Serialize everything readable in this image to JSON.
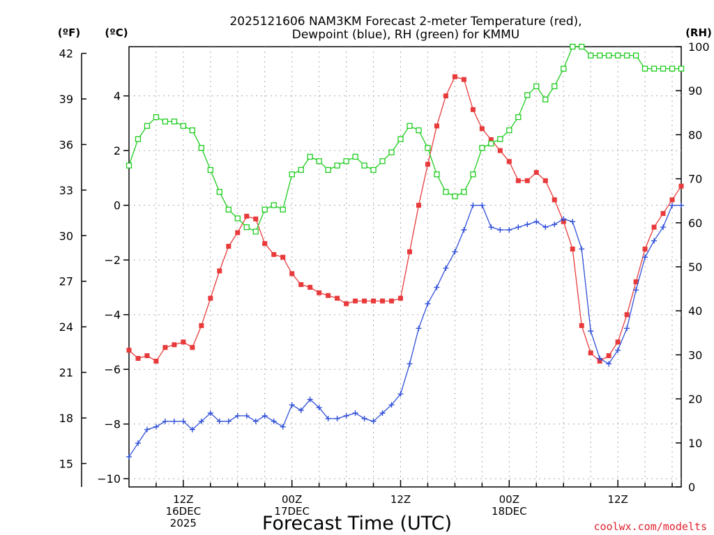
{
  "chart_data": {
    "type": "line",
    "title_line1": "2025121606 NAM3KM Forecast 2-meter Temperature (red),",
    "title_line2": "Dewpoint (blue), RH (green) for KMMU",
    "left_f_unit": "(ºF)",
    "left_c_unit": "(ºC)",
    "right_unit": "(RH)",
    "xlabel": "Forecast Time (UTC)",
    "credit": "coolwx.com/modelts",
    "x_range": [
      0,
      61
    ],
    "celsius_range": [
      -10.3,
      5.8
    ],
    "rh_range": [
      0,
      100
    ],
    "fahrenheit_ticks": [
      "42",
      "39",
      "36",
      "33",
      "30",
      "27",
      "24",
      "21",
      "18",
      "15"
    ],
    "celsius_ticks": [
      "4",
      "2",
      "0",
      "−2",
      "−4",
      "−6",
      "−8",
      "−10"
    ],
    "rh_ticks": [
      "100",
      "90",
      "80",
      "70",
      "60",
      "50",
      "40",
      "30",
      "20",
      "10",
      "0"
    ],
    "x_ticks": [
      {
        "x": 6,
        "lines": [
          "12Z",
          "16DEC",
          "2025"
        ]
      },
      {
        "x": 18,
        "lines": [
          "00Z",
          "17DEC"
        ]
      },
      {
        "x": 30,
        "lines": [
          "12Z"
        ]
      },
      {
        "x": 42,
        "lines": [
          "00Z",
          "18DEC"
        ]
      },
      {
        "x": 54,
        "lines": [
          "12Z"
        ]
      }
    ],
    "grid": true,
    "colors": {
      "temperature": "#e83a3a",
      "dewpoint": "#2f4fd8",
      "rh": "#1ccc1c"
    },
    "series": [
      {
        "key": "temperature",
        "values": [
          -5.3,
          -5.6,
          -5.5,
          -5.7,
          -5.2,
          -5.1,
          -5.0,
          -5.2,
          -4.4,
          -3.4,
          -2.4,
          -1.5,
          -1.0,
          -0.4,
          -0.5,
          -1.4,
          -1.8,
          -1.9,
          -2.5,
          -2.9,
          -3.0,
          -3.2,
          -3.3,
          -3.4,
          -3.6,
          -3.5,
          -3.5,
          -3.5,
          -3.5,
          -3.5,
          -3.4,
          -1.7,
          0.0,
          1.5,
          2.9,
          4.0,
          4.7,
          4.6,
          3.5,
          2.8,
          2.4,
          2.0,
          1.6,
          0.9,
          0.9,
          1.2,
          0.9,
          0.2,
          -0.6,
          -1.6,
          -4.4,
          -5.4,
          -5.7,
          -5.5,
          -5.0,
          -4.0,
          -2.8,
          -1.6,
          -0.8,
          -0.3,
          0.2,
          0.7
        ]
      },
      {
        "key": "dewpoint",
        "values": [
          -9.2,
          -8.7,
          -8.2,
          -8.1,
          -7.9,
          -7.9,
          -7.9,
          -8.2,
          -7.9,
          -7.6,
          -7.9,
          -7.9,
          -7.7,
          -7.7,
          -7.9,
          -7.7,
          -7.9,
          -8.1,
          -7.3,
          -7.5,
          -7.1,
          -7.4,
          -7.8,
          -7.8,
          -7.7,
          -7.6,
          -7.8,
          -7.9,
          -7.6,
          -7.3,
          -6.9,
          -5.8,
          -4.5,
          -3.6,
          -3.0,
          -2.3,
          -1.7,
          -0.9,
          0.0,
          0.0,
          -0.8,
          -0.9,
          -0.9,
          -0.8,
          -0.7,
          -0.6,
          -0.8,
          -0.7,
          -0.5,
          -0.6,
          -1.6,
          -4.6,
          -5.6,
          -5.8,
          -5.3,
          -4.5,
          -3.1,
          -1.9,
          -1.3,
          -0.8,
          0.0,
          0.0
        ]
      },
      {
        "key": "rh",
        "values": [
          73,
          79,
          82,
          84,
          83,
          83,
          82,
          81,
          77,
          72,
          67,
          63,
          61,
          59,
          58,
          63,
          64,
          63,
          71,
          72,
          75,
          74,
          72,
          73,
          74,
          75,
          73,
          72,
          74,
          76,
          79,
          82,
          81,
          77,
          71,
          67,
          66,
          67,
          71,
          77,
          78,
          79,
          81,
          84,
          89,
          91,
          88,
          91,
          95,
          100,
          100,
          98,
          98,
          98,
          98,
          98,
          98,
          95,
          95,
          95,
          95,
          95
        ]
      }
    ]
  }
}
